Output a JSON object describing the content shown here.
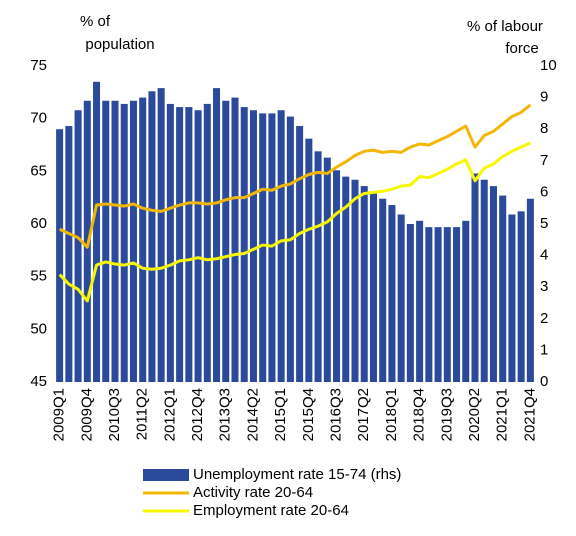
{
  "chart_data": {
    "type": "bar-line",
    "y_label": [
      "% of",
      "population"
    ],
    "y2_label": [
      "% of labour",
      "force"
    ],
    "categories": [
      "2009Q1",
      null,
      null,
      "2009Q4",
      null,
      null,
      "2010Q3",
      null,
      null,
      "2011Q2",
      null,
      null,
      "2012Q1",
      null,
      null,
      "2012Q4",
      null,
      null,
      "2013Q3",
      null,
      null,
      "2014Q2",
      null,
      null,
      "2015Q1",
      null,
      null,
      "2015Q4",
      null,
      null,
      "2016Q3",
      null,
      null,
      "2017Q2",
      null,
      null,
      "2018Q1",
      null,
      null,
      "2018Q4",
      null,
      null,
      "2019Q3",
      null,
      null,
      "2020Q2",
      null,
      null,
      "2021Q1",
      null,
      null,
      "2021Q4"
    ],
    "ylim": [
      45,
      75
    ],
    "yticks": [
      45,
      50,
      55,
      60,
      65,
      70,
      75
    ],
    "y2lim": [
      0,
      10
    ],
    "y2ticks": [
      0,
      1,
      2,
      3,
      4,
      5,
      6,
      7,
      8,
      9,
      10
    ],
    "series": [
      {
        "name": "Unemployment rate 15-74 (rhs)",
        "type": "bar",
        "axis": "y2",
        "color": "#2b4a9c",
        "values": [
          8.0,
          8.1,
          8.6,
          8.9,
          9.5,
          8.9,
          8.9,
          8.8,
          8.9,
          9.0,
          9.2,
          9.3,
          8.8,
          8.7,
          8.7,
          8.6,
          8.8,
          9.3,
          8.9,
          9.0,
          8.7,
          8.6,
          8.5,
          8.5,
          8.6,
          8.4,
          8.1,
          7.7,
          7.3,
          7.1,
          6.7,
          6.5,
          6.4,
          6.2,
          6.0,
          5.8,
          5.6,
          5.3,
          5.0,
          5.1,
          4.9,
          4.9,
          4.9,
          4.9,
          5.1,
          6.6,
          6.4,
          6.2,
          5.9,
          5.3,
          5.4,
          5.8
        ]
      },
      {
        "name": "Activity rate 20-64",
        "type": "line",
        "color": "#f2b705",
        "values": [
          59.5,
          59.1,
          58.7,
          57.8,
          61.8,
          61.9,
          61.8,
          61.7,
          61.9,
          61.5,
          61.3,
          61.2,
          61.5,
          61.8,
          62.0,
          62.0,
          61.9,
          62.0,
          62.3,
          62.5,
          62.5,
          62.9,
          63.3,
          63.2,
          63.6,
          63.8,
          64.3,
          64.7,
          64.9,
          64.8,
          65.4,
          65.9,
          66.5,
          66.9,
          67.0,
          66.8,
          66.9,
          66.8,
          67.3,
          67.6,
          67.5,
          67.9,
          68.3,
          68.8,
          69.3,
          67.3,
          68.4,
          68.8,
          69.5,
          70.2,
          70.6,
          71.3
        ]
      },
      {
        "name": "Employment rate 20-64",
        "type": "line",
        "color": "#f7f700",
        "values": [
          55.2,
          54.3,
          53.8,
          52.7,
          56.1,
          56.4,
          56.2,
          56.1,
          56.3,
          55.8,
          55.7,
          55.8,
          56.1,
          56.5,
          56.6,
          56.8,
          56.6,
          56.7,
          56.9,
          57.1,
          57.2,
          57.6,
          58.0,
          57.9,
          58.4,
          58.5,
          59.1,
          59.5,
          59.8,
          60.2,
          61.0,
          61.6,
          62.4,
          62.9,
          63.0,
          63.1,
          63.3,
          63.6,
          63.7,
          64.5,
          64.4,
          64.8,
          65.2,
          65.7,
          66.1,
          64.1,
          65.3,
          65.7,
          66.4,
          66.9,
          67.3,
          67.7
        ]
      }
    ]
  }
}
